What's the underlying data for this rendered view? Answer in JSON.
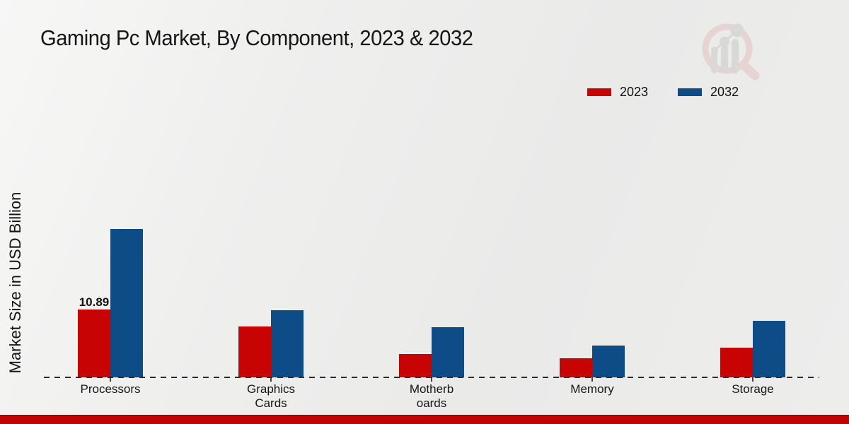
{
  "title": "Gaming Pc Market, By Component, 2023 & 2032",
  "ylabel": "Market Size in USD Billion",
  "legend": {
    "items": [
      {
        "label": "2023",
        "color": "#c80303"
      },
      {
        "label": "2032",
        "color": "#0d4c86"
      }
    ]
  },
  "colors": {
    "series_2023": "#c80303",
    "series_2032": "#0d4c86",
    "footer_strip": "#c00404",
    "background": "#ececeb"
  },
  "watermark_icon": "magnifier-bar-chart-logo-icon",
  "chart_data": {
    "type": "bar",
    "title": "Gaming Pc Market, By Component, 2023 & 2032",
    "xlabel": "",
    "ylabel": "Market Size in USD Billion",
    "categories": [
      "Processors",
      "Graphics Cards",
      "Motherboards",
      "Memory",
      "Storage"
    ],
    "series": [
      {
        "name": "2023",
        "color": "#c80303",
        "values": [
          10.89,
          8.2,
          3.7,
          3.1,
          4.8
        ]
      },
      {
        "name": "2032",
        "color": "#0d4c86",
        "values": [
          23.8,
          10.8,
          8.1,
          5.1,
          9.1
        ]
      }
    ],
    "ylim": [
      0,
      26
    ],
    "grid": false,
    "y_axis_ticks_visible": false,
    "legend_position": "top-right",
    "baseline_style": "dashed",
    "tick_label_lines": [
      [
        "Processors"
      ],
      [
        "Graphics",
        "Cards"
      ],
      [
        "Motherb",
        "oards"
      ],
      [
        "Memory"
      ],
      [
        "Storage"
      ]
    ],
    "annotations": [
      {
        "category_index": 0,
        "series_index": 0,
        "text": "10.89"
      }
    ]
  }
}
